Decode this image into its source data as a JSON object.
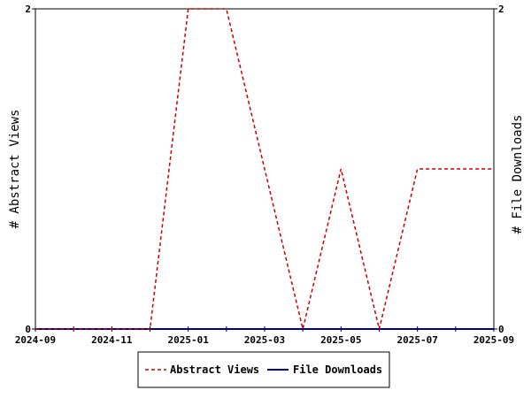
{
  "chart_data": {
    "type": "line",
    "title": "",
    "x": [
      "2024-09",
      "2024-10",
      "2024-11",
      "2024-12",
      "2025-01",
      "2025-02",
      "2025-03",
      "2025-04",
      "2025-05",
      "2025-06",
      "2025-07",
      "2025-08",
      "2025-09"
    ],
    "x_tick_labels": [
      "2024-09",
      "2024-11",
      "2025-01",
      "2025-03",
      "2025-05",
      "2025-07",
      "2025-09"
    ],
    "y_left": {
      "label": "# Abstract Views",
      "ylim": [
        0,
        2
      ],
      "tick_labels": [
        "0",
        "2"
      ]
    },
    "y_right": {
      "label": "# File Downloads",
      "ylim": [
        0,
        2
      ],
      "tick_labels": [
        "0",
        "2"
      ]
    },
    "series": [
      {
        "name": "Abstract Views",
        "axis": "left",
        "color": "#cc0000",
        "dash": "dashed",
        "values": [
          0,
          0,
          0,
          0,
          2,
          2,
          1,
          0,
          1,
          0,
          1,
          1,
          1
        ]
      },
      {
        "name": "File Downloads",
        "axis": "right",
        "color": "#000099",
        "dash": "solid",
        "values": [
          0,
          0,
          0,
          0,
          0,
          0,
          0,
          0,
          0,
          0,
          0,
          0,
          0
        ]
      }
    ],
    "grid": false,
    "legend_position": "bottom"
  }
}
